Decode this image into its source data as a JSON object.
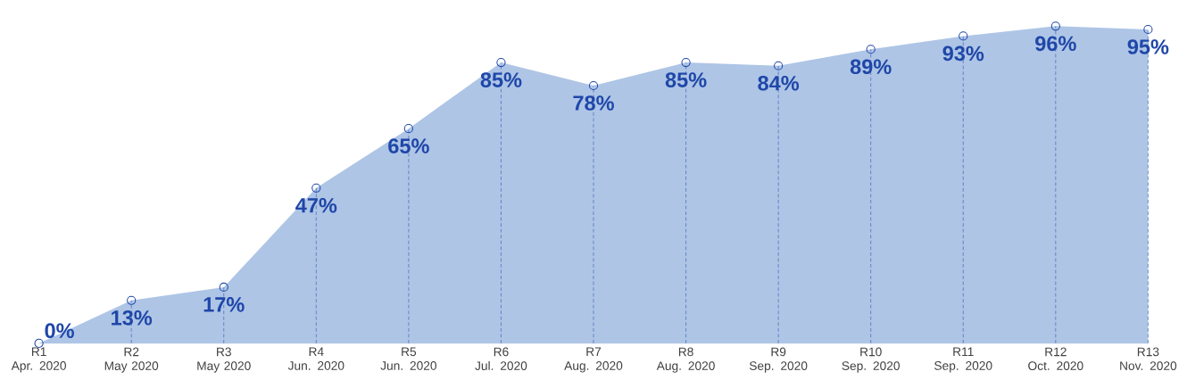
{
  "chart_data": {
    "type": "area",
    "categories": [
      "R1\nApr. 2020",
      "R2\nMay 2020",
      "R3\nMay 2020",
      "R4\nJun. 2020",
      "R5\nJun. 2020",
      "R6\nJul. 2020",
      "R7\nAug. 2020",
      "R8\nAug. 2020",
      "R9\nSep. 2020",
      "R10\nSep. 2020",
      "R11\nSep. 2020",
      "R12\nOct. 2020",
      "R13\nNov. 2020"
    ],
    "values": [
      0,
      13,
      17,
      47,
      65,
      85,
      78,
      85,
      84,
      89,
      93,
      96,
      95
    ],
    "value_labels": [
      "0%",
      "13%",
      "17%",
      "47%",
      "65%",
      "85%",
      "78%",
      "85%",
      "84%",
      "89%",
      "93%",
      "96%",
      "95%"
    ],
    "color": "#aec5e6",
    "marker": "circle",
    "grid": "x"
  }
}
